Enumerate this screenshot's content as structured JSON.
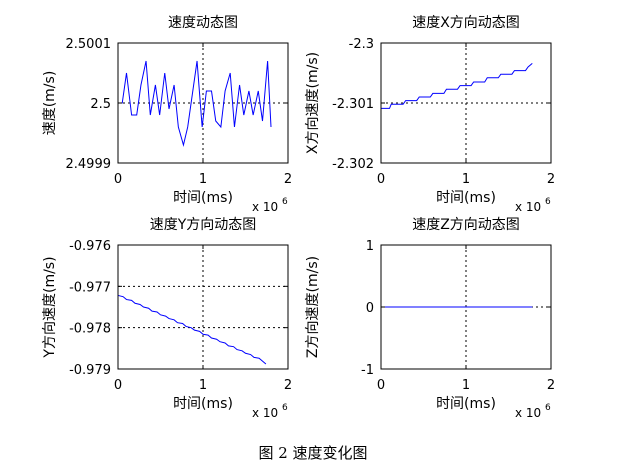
{
  "caption": "图 2  速度变化图",
  "chart_data": [
    {
      "type": "line",
      "title": "速度动态图",
      "xlabel": "时间(ms)",
      "ylabel": "速度(m/s)",
      "x_exponent": "x 10",
      "x_exponent_power": "6",
      "xlim": [
        0,
        2
      ],
      "ylim": [
        2.4999,
        2.5001
      ],
      "xticks": [
        0,
        1,
        2
      ],
      "xtick_labels": [
        "0",
        "1",
        "2"
      ],
      "yticks": [
        2.4999,
        2.5,
        2.5001
      ],
      "ytick_labels": [
        "2.4999",
        "2.5",
        "2.5001"
      ],
      "grid": true,
      "color": "#0000ff",
      "series": [
        {
          "x": [
            0,
            0.05,
            0.1,
            0.16,
            0.22,
            0.27,
            0.33,
            0.38,
            0.44,
            0.49,
            0.55,
            0.6,
            0.66,
            0.71,
            0.77,
            0.82,
            0.88,
            0.93,
            0.99,
            1.04,
            1.1,
            1.15,
            1.21,
            1.26,
            1.32,
            1.37,
            1.43,
            1.48,
            1.54,
            1.59,
            1.65,
            1.7,
            1.76,
            1.8
          ],
          "y": [
            2.5,
            2.5,
            2.50005,
            2.49998,
            2.49998,
            2.50003,
            2.50007,
            2.49998,
            2.50003,
            2.49998,
            2.50005,
            2.49999,
            2.50003,
            2.49996,
            2.49993,
            2.49996,
            2.50002,
            2.50007,
            2.49996,
            2.50002,
            2.50002,
            2.49997,
            2.49996,
            2.50002,
            2.50005,
            2.49996,
            2.50003,
            2.49998,
            2.50002,
            2.49998,
            2.50002,
            2.49997,
            2.50007,
            2.49996
          ]
        }
      ]
    },
    {
      "type": "line",
      "title": "速度X方向动态图",
      "xlabel": "时间(ms)",
      "ylabel": "X方向速度(m/s)",
      "x_exponent": "x 10",
      "x_exponent_power": "6",
      "xlim": [
        0,
        2
      ],
      "ylim": [
        -2.302,
        -2.3
      ],
      "xticks": [
        0,
        1,
        2
      ],
      "xtick_labels": [
        "0",
        "1",
        "2"
      ],
      "yticks": [
        -2.302,
        -2.301,
        -2.3
      ],
      "ytick_labels": [
        "-2.302",
        "-2.301",
        "-2.3"
      ],
      "grid": true,
      "color": "#0000ff",
      "series": [
        {
          "x": [
            0,
            0.1,
            0.12,
            0.26,
            0.29,
            0.42,
            0.45,
            0.58,
            0.61,
            0.74,
            0.77,
            0.9,
            0.93,
            1.06,
            1.09,
            1.22,
            1.25,
            1.38,
            1.41,
            1.54,
            1.57,
            1.7,
            1.73,
            1.78
          ],
          "y": [
            -2.30109,
            -2.30109,
            -2.30102,
            -2.30102,
            -2.30096,
            -2.30096,
            -2.3009,
            -2.3009,
            -2.30084,
            -2.30084,
            -2.30077,
            -2.30077,
            -2.30071,
            -2.30071,
            -2.30065,
            -2.30065,
            -2.30058,
            -2.30058,
            -2.30052,
            -2.30052,
            -2.30046,
            -2.30046,
            -2.3004,
            -2.30034
          ]
        }
      ]
    },
    {
      "type": "line",
      "title": "速度Y方向动态图",
      "xlabel": "时间(ms)",
      "ylabel": "Y方向速度(m/s)",
      "x_exponent": "x 10",
      "x_exponent_power": "6",
      "xlim": [
        0,
        2
      ],
      "ylim": [
        -0.979,
        -0.976
      ],
      "xticks": [
        0,
        1,
        2
      ],
      "xtick_labels": [
        "0",
        "1",
        "2"
      ],
      "yticks": [
        -0.979,
        -0.978,
        -0.977,
        -0.976
      ],
      "ytick_labels": [
        "-0.979",
        "-0.978",
        "-0.977",
        "-0.976"
      ],
      "grid": true,
      "color": "#0000ff",
      "series": [
        {
          "x": [
            0,
            0.06,
            0.1,
            0.16,
            0.2,
            0.26,
            0.3,
            0.36,
            0.4,
            0.46,
            0.5,
            0.56,
            0.6,
            0.66,
            0.7,
            0.76,
            0.8,
            0.86,
            0.9,
            0.96,
            1.0,
            1.06,
            1.1,
            1.16,
            1.2,
            1.26,
            1.3,
            1.36,
            1.4,
            1.46,
            1.5,
            1.56,
            1.6,
            1.66,
            1.7,
            1.74
          ],
          "y": [
            -0.97722,
            -0.97725,
            -0.97732,
            -0.97734,
            -0.97741,
            -0.97744,
            -0.9775,
            -0.97753,
            -0.9776,
            -0.97762,
            -0.97769,
            -0.97772,
            -0.97778,
            -0.97781,
            -0.97788,
            -0.9779,
            -0.97797,
            -0.978,
            -0.97806,
            -0.97809,
            -0.97816,
            -0.97818,
            -0.97825,
            -0.97828,
            -0.97834,
            -0.97837,
            -0.97844,
            -0.97846,
            -0.97853,
            -0.97856,
            -0.97862,
            -0.97865,
            -0.97872,
            -0.97874,
            -0.97881,
            -0.97888
          ]
        }
      ]
    },
    {
      "type": "line",
      "title": "速度Z方向动态图",
      "xlabel": "时间(ms)",
      "ylabel": "Z方向速度(m/s)",
      "x_exponent": "x 10",
      "x_exponent_power": "6",
      "xlim": [
        0,
        2
      ],
      "ylim": [
        -1,
        1
      ],
      "xticks": [
        0,
        1,
        2
      ],
      "xtick_labels": [
        "0",
        "1",
        "2"
      ],
      "yticks": [
        -1,
        0,
        1
      ],
      "ytick_labels": [
        "-1",
        "0",
        "1"
      ],
      "grid": true,
      "color": "#0000ff",
      "series": [
        {
          "x": [
            0,
            1.78
          ],
          "y": [
            0,
            0
          ]
        }
      ]
    }
  ]
}
